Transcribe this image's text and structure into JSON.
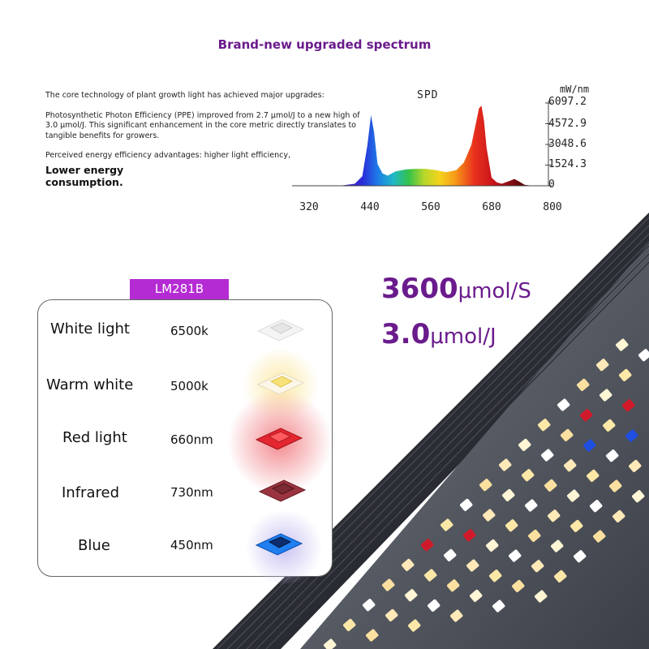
{
  "title": "Brand-new upgraded spectrum",
  "intro": {
    "p1": "The core technology of plant growth light has achieved major upgrades:",
    "p2": "Photosynthetic Photon Efficiency (PPE) improved from 2.7 μmol/J to a new high of 3.0 μmol/J. This significant enhancement in the core metric directly translates to tangible benefits for growers.",
    "p3": "Perceived energy efficiency advantages: higher light efficiency,",
    "p4": "Lower energy consumption."
  },
  "chart_data": {
    "type": "area",
    "title": "SPD",
    "ylabel": "mW/nm",
    "xlim": [
      320,
      800
    ],
    "ylim": [
      0,
      6097.2
    ],
    "x_ticks": [
      "320",
      "440",
      "560",
      "680",
      "800"
    ],
    "y_ticks": [
      "6097.2",
      "4572.9",
      "3048.6",
      "1524.3",
      "0"
    ],
    "x": [
      380,
      410,
      425,
      435,
      442,
      448,
      455,
      465,
      475,
      490,
      510,
      530,
      550,
      570,
      590,
      610,
      625,
      640,
      650,
      655,
      660,
      665,
      670,
      680,
      690,
      700,
      715,
      725,
      735,
      745,
      760
    ],
    "y": [
      0,
      150,
      700,
      3000,
      5200,
      4000,
      1600,
      900,
      750,
      1050,
      1200,
      1250,
      1250,
      1150,
      1000,
      1150,
      1700,
      3000,
      4800,
      5700,
      5900,
      4800,
      2800,
      600,
      250,
      150,
      350,
      500,
      300,
      80,
      0
    ]
  },
  "lm_tag": "LM281B",
  "big_stats": {
    "flux_value": "3600",
    "flux_unit": "μmol/S",
    "eff_value": "3.0",
    "eff_unit": "μmol/J"
  },
  "spectrum_rows": [
    {
      "label": "White light",
      "value": "6500k",
      "color": "#f2f2f2"
    },
    {
      "label": "Warm white",
      "value": "5000k",
      "color": "#f6e27a"
    },
    {
      "label": "Red light",
      "value": "660nm",
      "color": "#e32630"
    },
    {
      "label": "Infrared",
      "value": "730nm",
      "color": "#9a3440"
    },
    {
      "label": "Blue",
      "value": "450nm",
      "color": "#1f7ff0"
    }
  ],
  "colors": {
    "accent": "#6a1b8c",
    "tag": "#b52bd3"
  }
}
